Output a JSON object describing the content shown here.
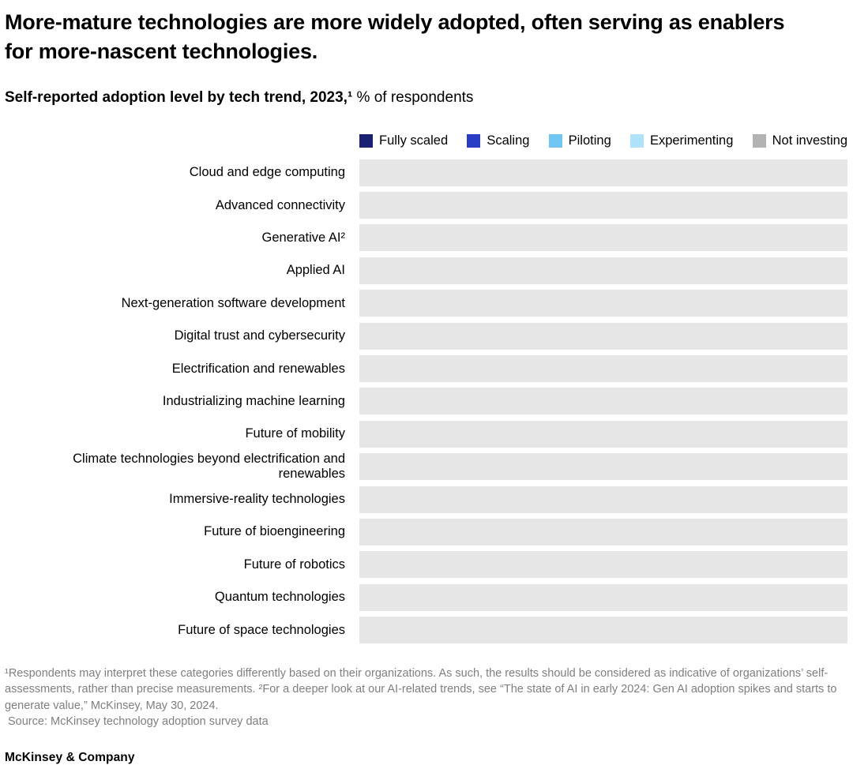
{
  "header": {
    "title": "More-mature technologies are more widely adopted, often serving as enablers for more-nascent technologies.",
    "subtitle_bold": "Self-reported adoption level by tech trend, 2023,¹",
    "subtitle_regular": " % of respondents"
  },
  "legend": {
    "items": [
      {
        "label": "Fully scaled",
        "color": "#1a2173"
      },
      {
        "label": "Scaling",
        "color": "#2a3bc4"
      },
      {
        "label": "Piloting",
        "color": "#71c5f2"
      },
      {
        "label": "Experimenting",
        "color": "#aee3f9"
      },
      {
        "label": "Not investing",
        "color": "#b3b3b3"
      }
    ]
  },
  "chart_data": {
    "type": "bar",
    "orientation": "horizontal",
    "stacked": true,
    "title": "Self-reported adoption level by tech trend, 2023, % of respondents",
    "categories": [
      "Cloud and edge computing",
      "Advanced connectivity",
      "Generative AI²",
      "Applied AI",
      "Next-generation software development",
      "Digital trust and cybersecurity",
      "Electrification and renewables",
      "Industrializing machine learning",
      "Future of mobility",
      "Climate technologies beyond electrification and renewables",
      "Immersive-reality technologies",
      "Future of bioengineering",
      "Future of robotics",
      "Quantum technologies",
      "Future of space technologies"
    ],
    "series_legend": [
      "Fully scaled",
      "Scaling",
      "Piloting",
      "Experimenting",
      "Not investing"
    ],
    "values_visible": false,
    "note": "Bar segment values are not rendered in the screenshot; every bar appears as a uniform full-width placeholder.",
    "bar_placeholder_color": "#e6e6e6",
    "xlim": [
      0,
      100
    ],
    "legend_position": "top-right"
  },
  "footnotes": {
    "note1": "¹Respondents may interpret these categories differently based on their organizations. As such, the results should be considered as indicative of organizations’ self-assessments, rather than precise measurements. ²For a deeper look at our AI-related trends, see “The state of AI in early 2024: Gen AI adoption spikes and starts to generate value,” McKinsey, May 30, 2024.",
    "source": "Source: McKinsey technology adoption survey data"
  },
  "branding": {
    "logo": "McKinsey & Company"
  }
}
